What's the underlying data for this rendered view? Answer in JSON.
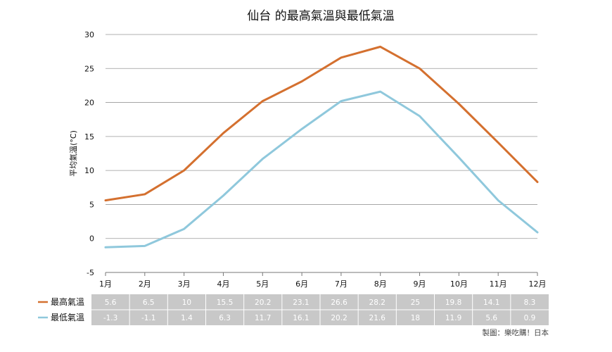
{
  "chart_data": {
    "type": "line",
    "title": "仙台 的最高氣溫與最低氣溫",
    "xlabel": "",
    "ylabel": "平均氣溫(°C)",
    "categories": [
      "1月",
      "2月",
      "3月",
      "4月",
      "5月",
      "6月",
      "7月",
      "8月",
      "9月",
      "10月",
      "11月",
      "12月"
    ],
    "series": [
      {
        "name": "最高氣溫",
        "color": "#D4702F",
        "values": [
          5.6,
          6.5,
          10,
          15.5,
          20.2,
          23.1,
          26.6,
          28.2,
          25,
          19.8,
          14.1,
          8.3
        ],
        "labels": [
          "5.6",
          "6.5",
          "10",
          "15.5",
          "20.2",
          "23.1",
          "26.6",
          "28.2",
          "25",
          "19.8",
          "14.1",
          "8.3"
        ]
      },
      {
        "name": "最低氣溫",
        "color": "#8FC8DC",
        "values": [
          -1.3,
          -1.1,
          1.4,
          6.3,
          11.7,
          16.1,
          20.2,
          21.6,
          18,
          11.9,
          5.6,
          0.9
        ],
        "labels": [
          "-1.3",
          "-1.1",
          "1.4",
          "6.3",
          "11.7",
          "16.1",
          "20.2",
          "21.6",
          "18",
          "11.9",
          "5.6",
          "0.9"
        ]
      }
    ],
    "ylim": [
      -5,
      30
    ],
    "yticks": [
      "-5",
      "0",
      "5",
      "10",
      "15",
      "20",
      "25",
      "30"
    ],
    "grid": true,
    "legend": "bottom-left data table",
    "table_bg": "#C8C8C8",
    "credit": "製圖：樂吃購！日本"
  }
}
